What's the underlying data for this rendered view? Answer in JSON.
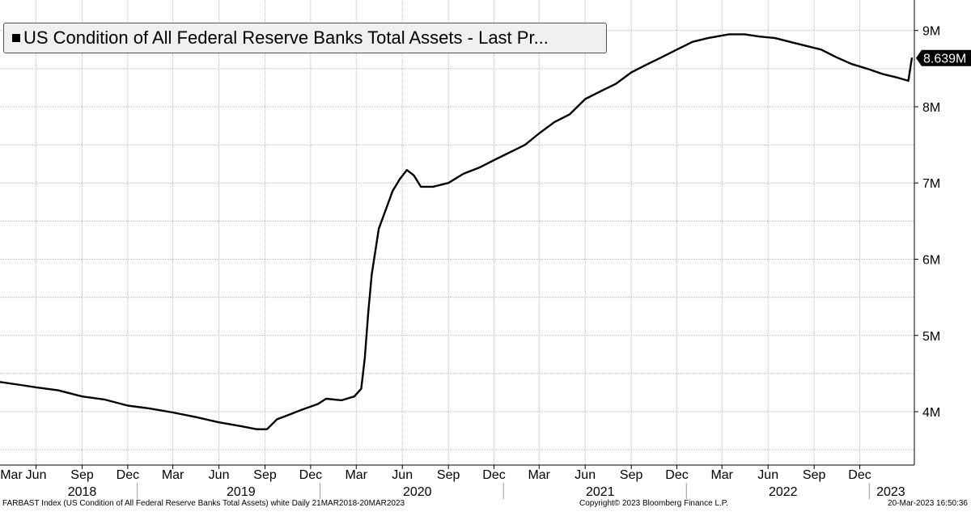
{
  "chart_data": {
    "type": "line",
    "title": "US Condition of All Federal Reserve Banks Total Assets - Last Pr...",
    "ylim": [
      3300000,
      9400000
    ],
    "yticks": [
      {
        "label": "4M",
        "value": 4000000
      },
      {
        "label": "5M",
        "value": 5000000
      },
      {
        "label": "6M",
        "value": 6000000
      },
      {
        "label": "7M",
        "value": 7000000
      },
      {
        "label": "8M",
        "value": 8000000
      },
      {
        "label": "9M",
        "value": 9000000
      }
    ],
    "xlim": [
      "2018-03-21",
      "2023-03-20"
    ],
    "month_ticks": [
      {
        "label": "Mar",
        "date": "2018-03-01"
      },
      {
        "label": "Jun",
        "date": "2018-06-01"
      },
      {
        "label": "Sep",
        "date": "2018-09-01"
      },
      {
        "label": "Dec",
        "date": "2018-12-01"
      },
      {
        "label": "Mar",
        "date": "2019-03-01"
      },
      {
        "label": "Jun",
        "date": "2019-06-01"
      },
      {
        "label": "Sep",
        "date": "2019-09-01"
      },
      {
        "label": "Dec",
        "date": "2019-12-01"
      },
      {
        "label": "Mar",
        "date": "2020-03-01"
      },
      {
        "label": "Jun",
        "date": "2020-06-01"
      },
      {
        "label": "Sep",
        "date": "2020-09-01"
      },
      {
        "label": "Dec",
        "date": "2020-12-01"
      },
      {
        "label": "Mar",
        "date": "2021-03-01"
      },
      {
        "label": "Jun",
        "date": "2021-06-01"
      },
      {
        "label": "Sep",
        "date": "2021-09-01"
      },
      {
        "label": "Dec",
        "date": "2021-12-01"
      },
      {
        "label": "Mar",
        "date": "2022-03-01"
      },
      {
        "label": "Jun",
        "date": "2022-06-01"
      },
      {
        "label": "Sep",
        "date": "2022-09-01"
      },
      {
        "label": "Dec",
        "date": "2022-12-01"
      }
    ],
    "year_labels": [
      {
        "label": "2018",
        "date": "2018-09-01"
      },
      {
        "label": "2019",
        "date": "2019-07-15"
      },
      {
        "label": "2020",
        "date": "2020-07-01"
      },
      {
        "label": "2021",
        "date": "2021-07-01"
      },
      {
        "label": "2022",
        "date": "2022-07-01"
      },
      {
        "label": "2023",
        "date": "2023-02-01"
      }
    ],
    "year_separators": [
      "2018-12-20",
      "2019-12-20",
      "2020-12-20",
      "2021-12-20",
      "2022-12-20"
    ],
    "grid": true,
    "last_value_label": "8.639M",
    "last_value": 8639000,
    "series": [
      {
        "color": "#000000",
        "points": [
          [
            "2018-03-21",
            4390000
          ],
          [
            "2018-05-01",
            4350000
          ],
          [
            "2018-06-01",
            4320000
          ],
          [
            "2018-07-15",
            4280000
          ],
          [
            "2018-09-01",
            4200000
          ],
          [
            "2018-10-15",
            4160000
          ],
          [
            "2018-12-01",
            4080000
          ],
          [
            "2019-01-15",
            4040000
          ],
          [
            "2019-03-01",
            3990000
          ],
          [
            "2019-04-15",
            3930000
          ],
          [
            "2019-06-01",
            3860000
          ],
          [
            "2019-07-15",
            3810000
          ],
          [
            "2019-08-15",
            3770000
          ],
          [
            "2019-09-05",
            3770000
          ],
          [
            "2019-09-25",
            3900000
          ],
          [
            "2019-10-15",
            3950000
          ],
          [
            "2019-11-15",
            4030000
          ],
          [
            "2019-12-15",
            4100000
          ],
          [
            "2020-01-01",
            4170000
          ],
          [
            "2020-02-01",
            4150000
          ],
          [
            "2020-02-26",
            4200000
          ],
          [
            "2020-03-11",
            4300000
          ],
          [
            "2020-03-18",
            4700000
          ],
          [
            "2020-03-25",
            5300000
          ],
          [
            "2020-04-01",
            5800000
          ],
          [
            "2020-04-08",
            6100000
          ],
          [
            "2020-04-15",
            6400000
          ],
          [
            "2020-04-29",
            6650000
          ],
          [
            "2020-05-13",
            6900000
          ],
          [
            "2020-05-27",
            7050000
          ],
          [
            "2020-06-10",
            7170000
          ],
          [
            "2020-06-24",
            7100000
          ],
          [
            "2020-07-08",
            6950000
          ],
          [
            "2020-08-01",
            6950000
          ],
          [
            "2020-09-01",
            7000000
          ],
          [
            "2020-10-01",
            7120000
          ],
          [
            "2020-11-01",
            7200000
          ],
          [
            "2020-12-01",
            7300000
          ],
          [
            "2021-01-01",
            7400000
          ],
          [
            "2021-02-01",
            7500000
          ],
          [
            "2021-03-01",
            7650000
          ],
          [
            "2021-04-01",
            7800000
          ],
          [
            "2021-05-01",
            7900000
          ],
          [
            "2021-06-01",
            8100000
          ],
          [
            "2021-07-01",
            8200000
          ],
          [
            "2021-08-01",
            8300000
          ],
          [
            "2021-09-01",
            8450000
          ],
          [
            "2021-10-01",
            8550000
          ],
          [
            "2021-11-01",
            8650000
          ],
          [
            "2021-12-01",
            8750000
          ],
          [
            "2022-01-01",
            8850000
          ],
          [
            "2022-02-01",
            8900000
          ],
          [
            "2022-03-15",
            8950000
          ],
          [
            "2022-04-15",
            8950000
          ],
          [
            "2022-05-15",
            8920000
          ],
          [
            "2022-06-15",
            8900000
          ],
          [
            "2022-07-15",
            8850000
          ],
          [
            "2022-08-15",
            8800000
          ],
          [
            "2022-09-15",
            8750000
          ],
          [
            "2022-10-15",
            8650000
          ],
          [
            "2022-11-15",
            8560000
          ],
          [
            "2022-12-15",
            8500000
          ],
          [
            "2023-01-15",
            8430000
          ],
          [
            "2023-02-15",
            8380000
          ],
          [
            "2023-03-08",
            8340000
          ],
          [
            "2023-03-15",
            8639000
          ]
        ]
      }
    ]
  },
  "footer": {
    "left": "FARBAST Index (US Condition of All Federal Reserve Banks Total Assets) white  Daily 21MAR2018-20MAR2023",
    "mid": "Copyright© 2023 Bloomberg Finance L.P.",
    "right": "20-Mar-2023 16:50:36"
  }
}
